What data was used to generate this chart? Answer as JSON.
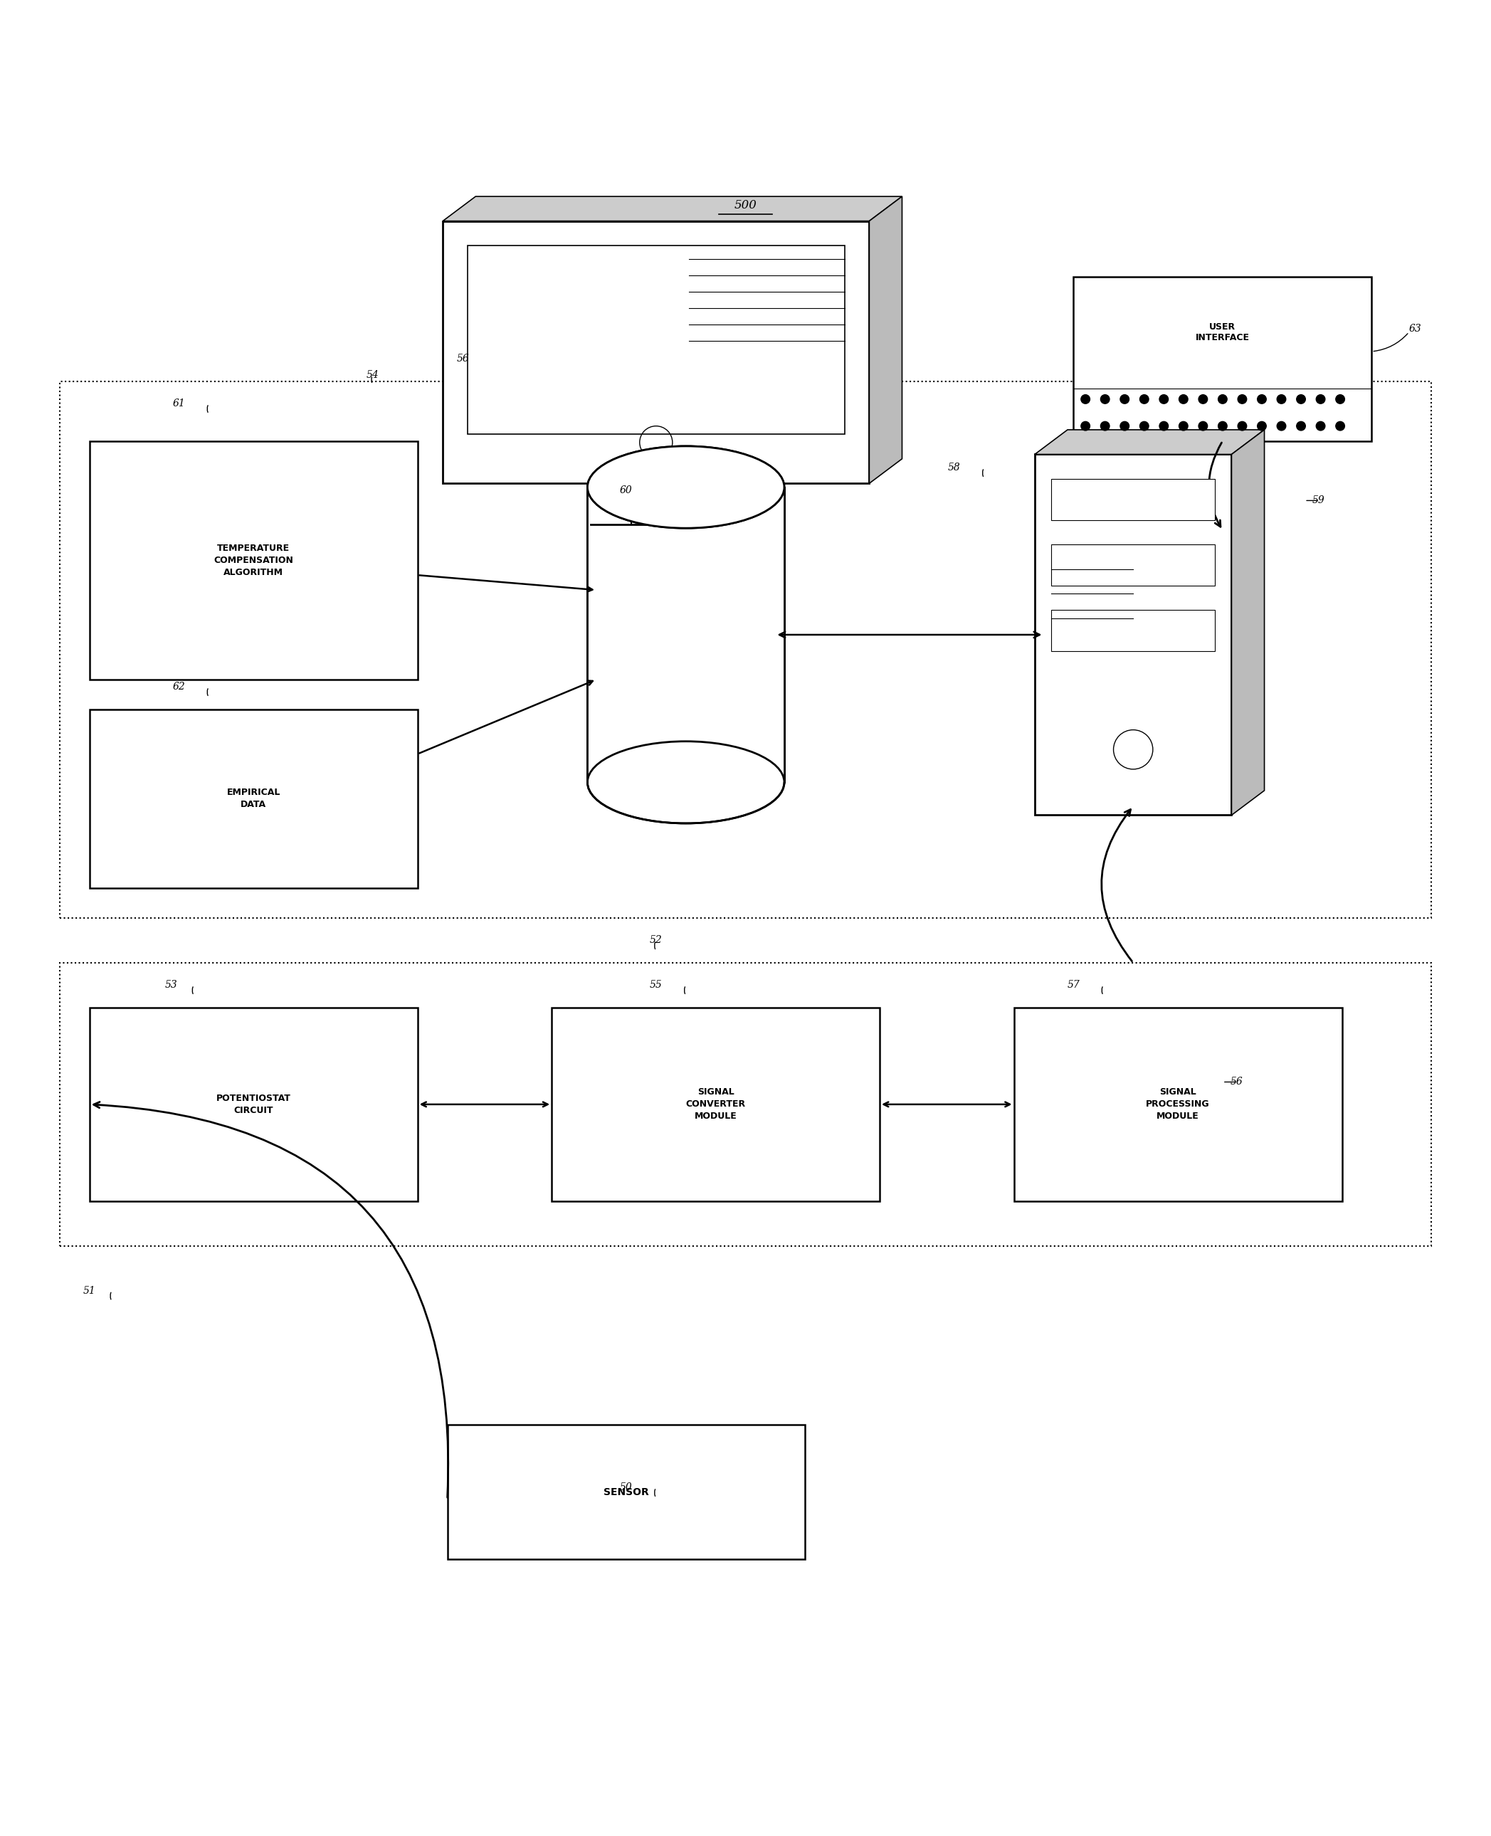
{
  "fig_width": 20.95,
  "fig_height": 25.8,
  "bg_color": "#ffffff",
  "line_color": "#000000",
  "label_500": "500",
  "label_56_monitor": "56",
  "label_63": "63",
  "label_54": "54",
  "label_59": "59",
  "label_61": "61",
  "label_60": "60",
  "label_58": "58",
  "label_62": "62",
  "label_52": "52",
  "label_53": "53",
  "label_55": "55",
  "label_57": "57",
  "label_56b": "56",
  "label_51": "51",
  "label_50": "50",
  "text_temp_comp": "TEMPERATURE\nCOMPENSATION\nALGORITHM",
  "text_empirical": "EMPIRICAL\nDATA",
  "text_user_interface": "USER\nINTERFACE",
  "text_potentiostat": "POTENTIOSTAT\nCIRCUIT",
  "text_signal_converter": "SIGNAL\nCONVERTER\nMODULE",
  "text_signal_processing": "SIGNAL\nPROCESSING\nMODULE",
  "text_sensor": "SENSOR"
}
